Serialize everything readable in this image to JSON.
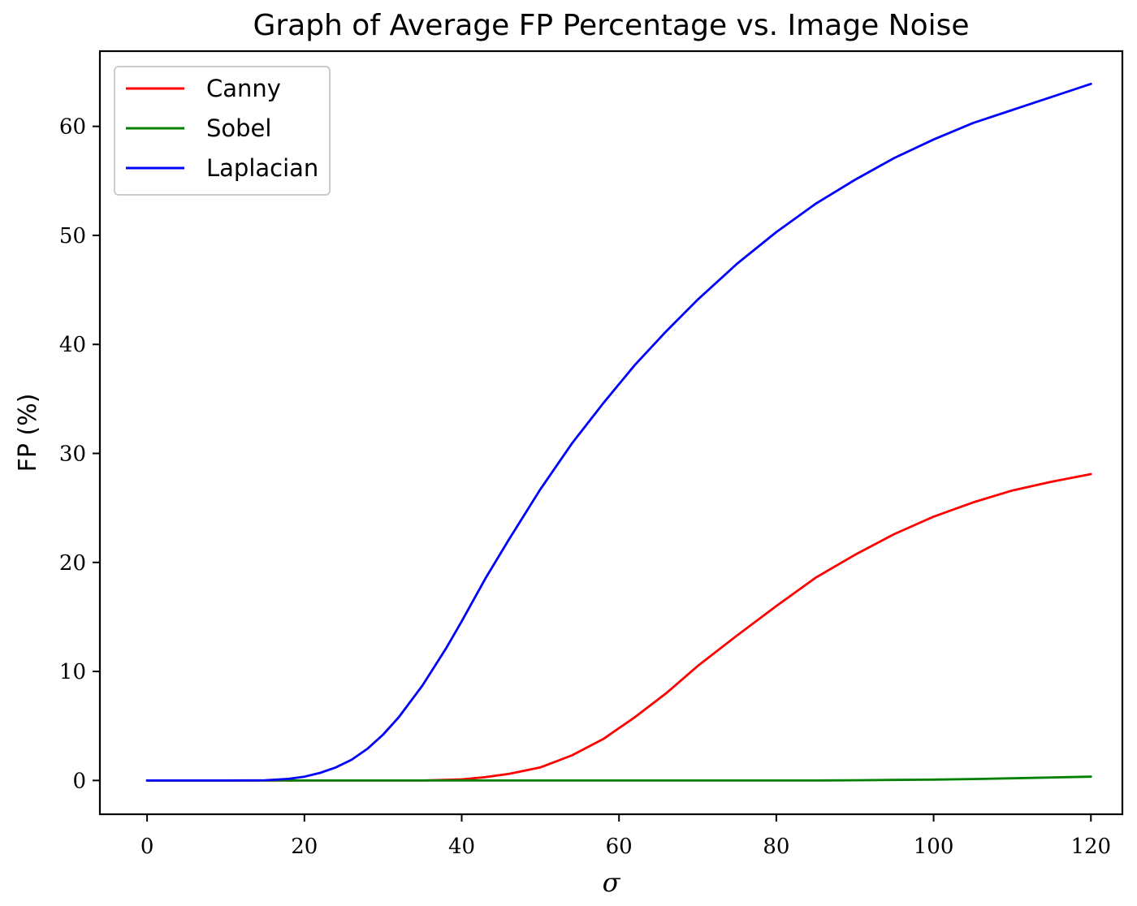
{
  "chart_data": {
    "type": "line",
    "title": "Graph of Average FP Percentage vs. Image Noise",
    "xlabel": "σ",
    "ylabel": "FP (%)",
    "xlim": [
      -6,
      124
    ],
    "ylim": [
      -3.1,
      66.9
    ],
    "xticks": [
      0,
      20,
      40,
      60,
      80,
      100,
      120
    ],
    "yticks": [
      0,
      10,
      20,
      30,
      40,
      50,
      60
    ],
    "xtick_labels": [
      "0",
      "20",
      "40",
      "60",
      "80",
      "100",
      "120"
    ],
    "ytick_labels": [
      "0",
      "10",
      "20",
      "30",
      "40",
      "50",
      "60"
    ],
    "grid": false,
    "legend_position": "top-left",
    "x": [
      0,
      5,
      10,
      15,
      18,
      20,
      22,
      24,
      26,
      28,
      30,
      32,
      35,
      38,
      40,
      43,
      46,
      50,
      54,
      58,
      62,
      66,
      70,
      75,
      80,
      85,
      90,
      95,
      100,
      105,
      110,
      115,
      120
    ],
    "series": [
      {
        "name": "Canny",
        "color": "#ff0000",
        "values": [
          0,
          0,
          0,
          0,
          0,
          0,
          0,
          0,
          0,
          0,
          0,
          0,
          0,
          0.05,
          0.1,
          0.3,
          0.6,
          1.2,
          2.3,
          3.8,
          5.8,
          8.0,
          10.5,
          13.3,
          16.0,
          18.6,
          20.7,
          22.6,
          24.2,
          25.5,
          26.6,
          27.4,
          28.1
        ]
      },
      {
        "name": "Sobel",
        "color": "#008000",
        "values": [
          0,
          0,
          0,
          0,
          0,
          0,
          0,
          0,
          0,
          0,
          0,
          0,
          0,
          0,
          0,
          0,
          0,
          0,
          0,
          0,
          0,
          0,
          0,
          0,
          0,
          0,
          0.02,
          0.05,
          0.08,
          0.13,
          0.2,
          0.27,
          0.35
        ]
      },
      {
        "name": "Laplacian",
        "color": "#0000ff",
        "values": [
          0,
          0,
          0,
          0.02,
          0.15,
          0.35,
          0.7,
          1.2,
          1.9,
          2.9,
          4.2,
          5.8,
          8.7,
          12.1,
          14.6,
          18.5,
          22.1,
          26.7,
          30.9,
          34.6,
          38.1,
          41.2,
          44.1,
          47.4,
          50.3,
          52.9,
          55.1,
          57.1,
          58.8,
          60.3,
          61.5,
          62.7,
          63.9
        ]
      }
    ]
  }
}
